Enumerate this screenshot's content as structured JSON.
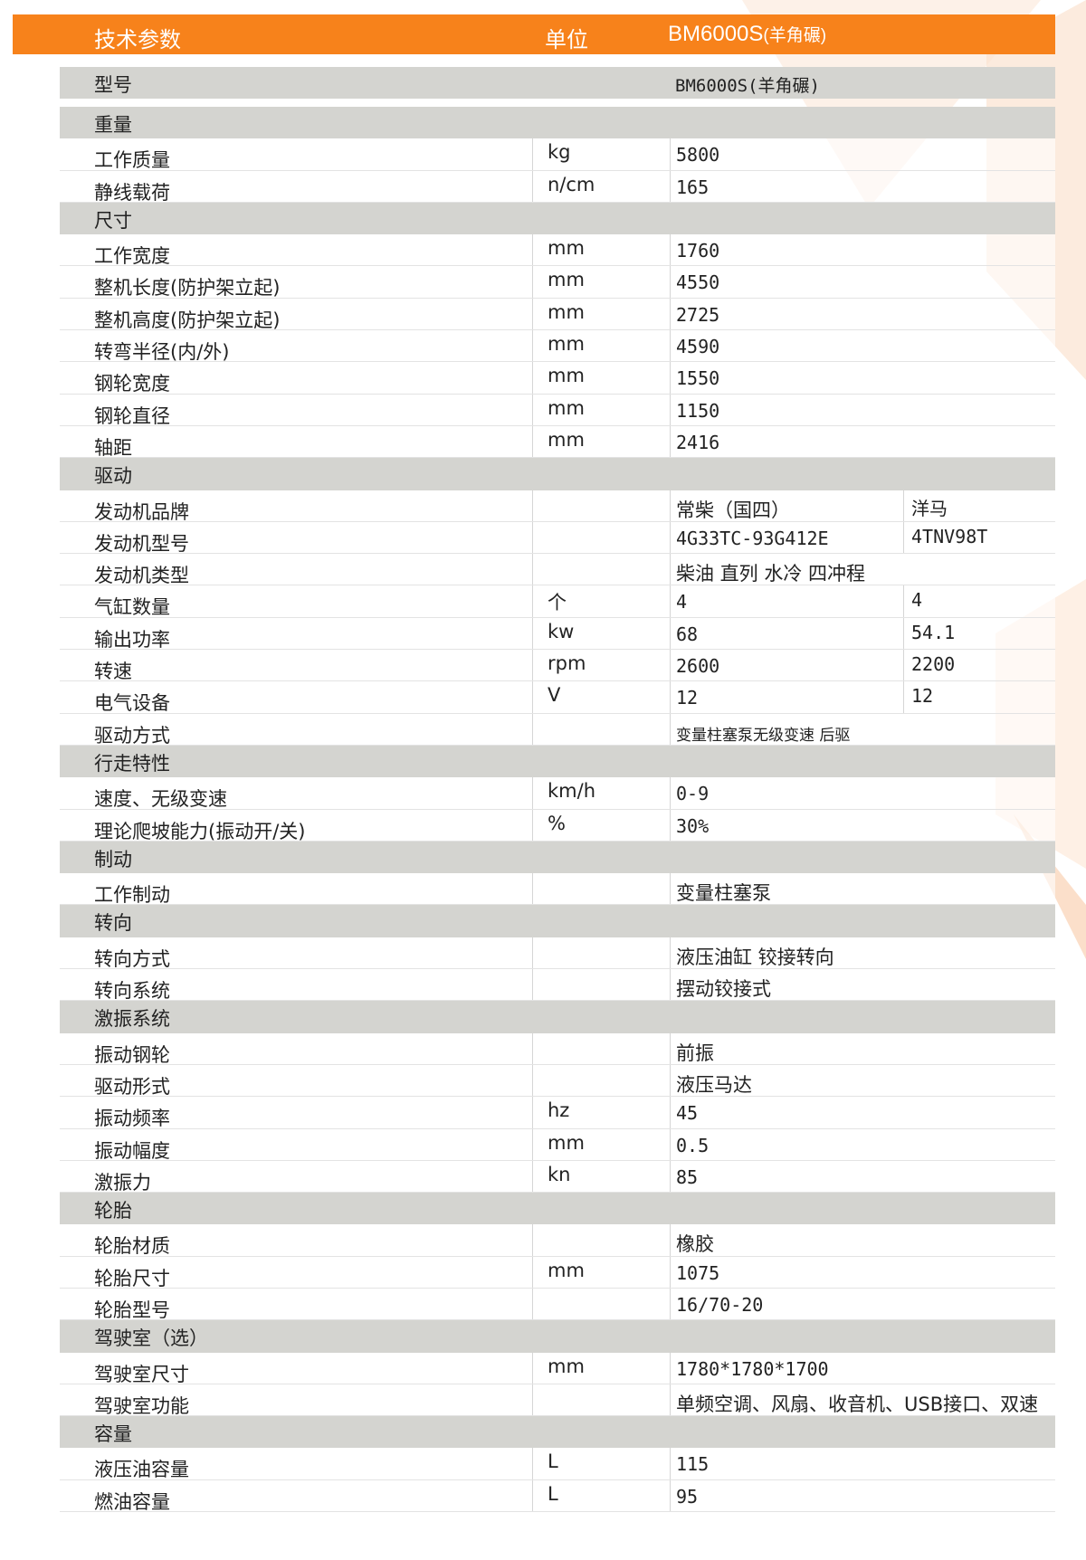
{
  "header": {
    "param": "技术参数",
    "unit": "单位",
    "model": "BM6000S",
    "model_note": "(羊角碾)"
  },
  "colors": {
    "accent": "#f7821b",
    "section_bg": "#d4d4d0"
  },
  "model_row": {
    "label": "型号",
    "value": "BM6000S(羊角碾)"
  },
  "sections": [
    {
      "title": "重量",
      "rows": [
        {
          "label": "工作质量",
          "unit": "kg",
          "value": "5800"
        },
        {
          "label": "静线载荷",
          "unit": "n/cm",
          "value": "165"
        }
      ]
    },
    {
      "title": "尺寸",
      "rows": [
        {
          "label": "工作宽度",
          "unit": "mm",
          "value": "1760"
        },
        {
          "label": "整机长度(防护架立起)",
          "unit": "mm",
          "value": "4550"
        },
        {
          "label": "整机高度(防护架立起)",
          "unit": "mm",
          "value": "2725"
        },
        {
          "label": "转弯半径(内/外)",
          "unit": "mm",
          "value": "4590"
        },
        {
          "label": "钢轮宽度",
          "unit": "mm",
          "value": "1550"
        },
        {
          "label": "钢轮直径",
          "unit": "mm",
          "value": "1150"
        },
        {
          "label": "轴距",
          "unit": "mm",
          "value": "2416"
        }
      ]
    },
    {
      "title": "驱动",
      "rows": [
        {
          "label": "发动机品牌",
          "unit": "",
          "value": "常柴（国四）",
          "value2": "洋马"
        },
        {
          "label": "发动机型号",
          "unit": "",
          "value": "4G33TC-93G412E",
          "value2": "4TNV98T"
        },
        {
          "label": "发动机类型",
          "unit": "",
          "value": "柴油 直列 水冷 四冲程"
        },
        {
          "label": "气缸数量",
          "unit": "个",
          "value": "4",
          "value2": "4"
        },
        {
          "label": "输出功率",
          "unit": "kw",
          "value": "68",
          "value2": "54.1"
        },
        {
          "label": "转速",
          "unit": "rpm",
          "value": "2600",
          "value2": "2200"
        },
        {
          "label": "电气设备",
          "unit": "V",
          "value": "12",
          "value2": "12"
        },
        {
          "label": "驱动方式",
          "unit": "",
          "value": "变量柱塞泵无级变速  后驱"
        }
      ]
    },
    {
      "title": "行走特性",
      "rows": [
        {
          "label": "速度、无级变速",
          "unit": "km/h",
          "value": "0-9"
        },
        {
          "label": "理论爬坡能力(振动开/关)",
          "unit": "%",
          "value": "30%"
        }
      ]
    },
    {
      "title": "制动",
      "rows": [
        {
          "label": "工作制动",
          "unit": "",
          "value": "变量柱塞泵"
        }
      ]
    },
    {
      "title": "转向",
      "rows": [
        {
          "label": "转向方式",
          "unit": "",
          "value": "液压油缸 铰接转向"
        },
        {
          "label": "转向系统",
          "unit": "",
          "value": "摆动铰接式"
        }
      ]
    },
    {
      "title": "激振系统",
      "rows": [
        {
          "label": "振动钢轮",
          "unit": "",
          "value": "前振"
        },
        {
          "label": "驱动形式",
          "unit": "",
          "value": "液压马达"
        },
        {
          "label": "振动频率",
          "unit": "hz",
          "value": "45"
        },
        {
          "label": "振动幅度",
          "unit": "mm",
          "value": "0.5"
        },
        {
          "label": "激振力",
          "unit": "kn",
          "value": "85"
        }
      ]
    },
    {
      "title": "轮胎",
      "rows": [
        {
          "label": "轮胎材质",
          "unit": "",
          "value": "橡胶"
        },
        {
          "label": "轮胎尺寸",
          "unit": "mm",
          "value": "1075"
        },
        {
          "label": "轮胎型号",
          "unit": "",
          "value": "16/70-20"
        }
      ]
    },
    {
      "title": "驾驶室（选）",
      "rows": [
        {
          "label": "驾驶室尺寸",
          "unit": "mm",
          "value": "1780*1780*1700"
        },
        {
          "label": "驾驶室功能",
          "unit": "",
          "value": "单频空调、风扇、收音机、USB接口、双速"
        }
      ]
    },
    {
      "title": "容量",
      "rows": [
        {
          "label": "液压油容量",
          "unit": "L",
          "value": "115"
        },
        {
          "label": "燃油容量",
          "unit": "L",
          "value": "95"
        }
      ]
    }
  ]
}
